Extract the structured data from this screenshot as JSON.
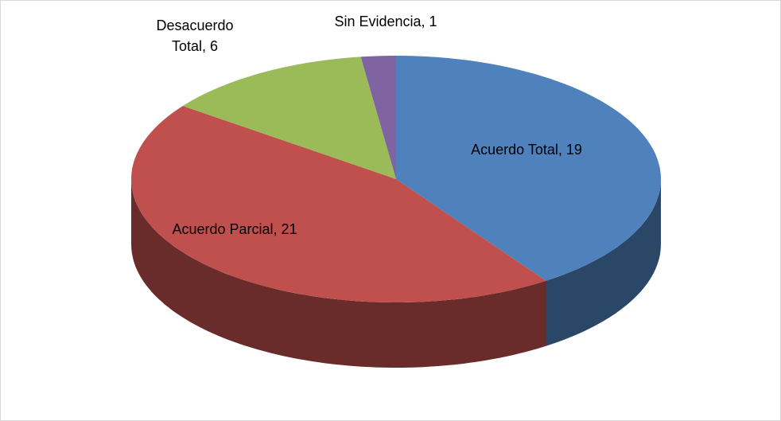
{
  "chart_data": {
    "type": "pie",
    "values": [
      19,
      21,
      6,
      1
    ],
    "value_labels": [
      "Acuerdo Total, 19",
      "Acuerdo Parcial, 21",
      "Desacuerdo Total, 6",
      "Sin Evidencia, 1"
    ],
    "colors": [
      "#4f81bd",
      "#c0504d",
      "#9bbb59",
      "#8064a2"
    ]
  }
}
